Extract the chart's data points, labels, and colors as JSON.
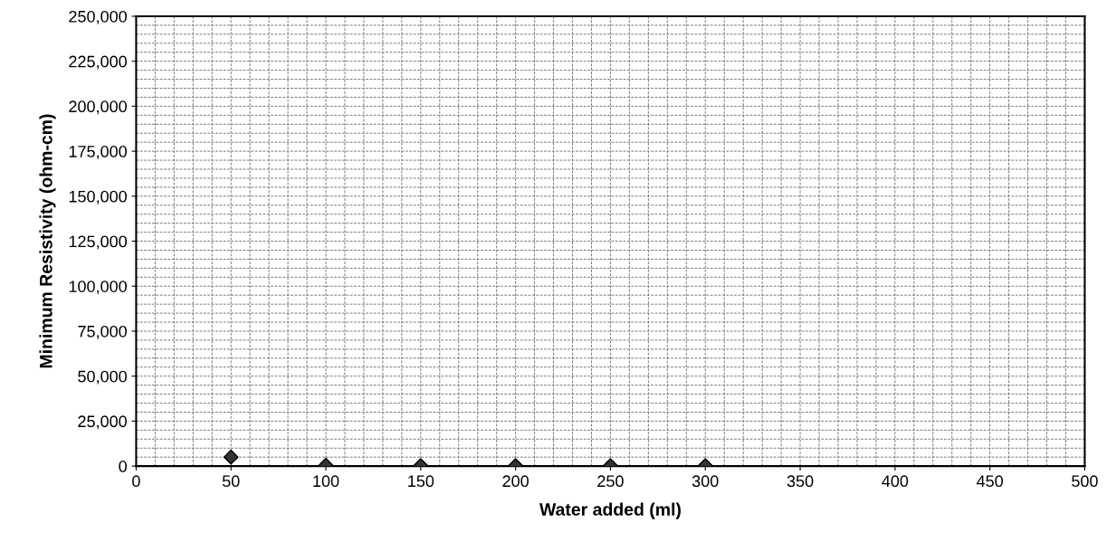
{
  "chart_data": {
    "type": "scatter",
    "xlabel": "Water added (ml)",
    "ylabel": "Minimum Resistivity (ohm-cm)",
    "x": [
      50,
      100,
      150,
      200,
      250,
      300
    ],
    "series": [
      {
        "color": "#333333",
        "values": [
          5000,
          500,
          300,
          300,
          300,
          300
        ]
      }
    ],
    "marker": "diamond",
    "grid": true,
    "xlim": [
      0,
      500
    ],
    "xticks": [
      0,
      50,
      100,
      150,
      200,
      250,
      300,
      350,
      400,
      450,
      500
    ],
    "ylim": [
      0,
      250000
    ],
    "yticks": [
      {
        "value": 0,
        "label": "0"
      },
      {
        "value": 25000,
        "label": "25,000"
      },
      {
        "value": 50000,
        "label": "50,000"
      },
      {
        "value": 75000,
        "label": "75,000"
      },
      {
        "value": 100000,
        "label": "100,000"
      },
      {
        "value": 125000,
        "label": "125,000"
      },
      {
        "value": 150000,
        "label": "150,000"
      },
      {
        "value": 175000,
        "label": "175,000"
      },
      {
        "value": 200000,
        "label": "200,000"
      },
      {
        "value": 225000,
        "label": "225,000"
      },
      {
        "value": 250000,
        "label": "250,000"
      }
    ]
  }
}
